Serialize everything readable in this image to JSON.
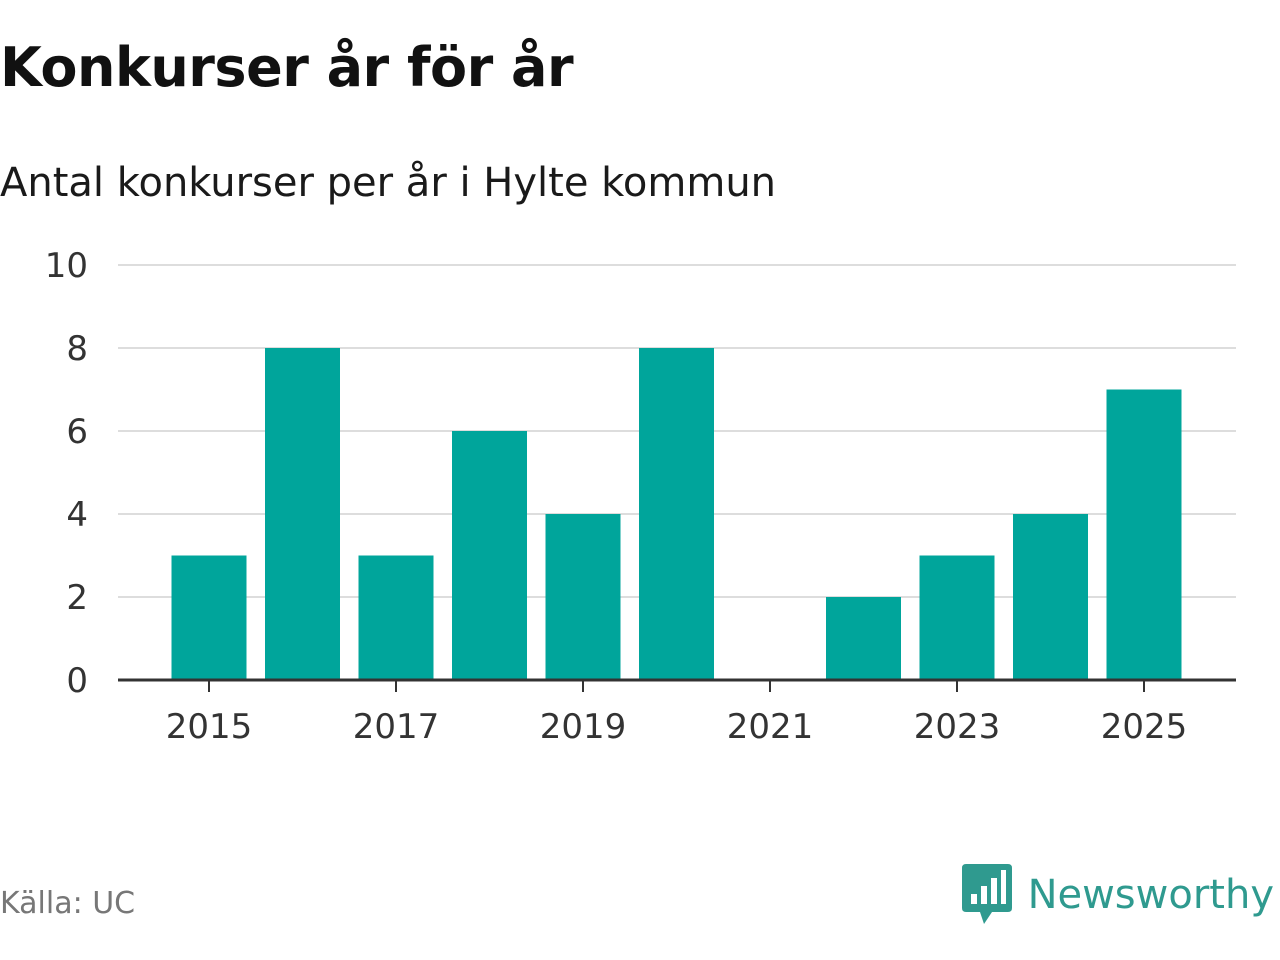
{
  "title": "Konkurser år för år",
  "subtitle": "Antal konkurser per år i Hylte kommun",
  "source": "Källa: UC",
  "brand": {
    "name": "Newsworthy",
    "icon": "newsworthy-logo-icon",
    "color": "#2f9a8f"
  },
  "colors": {
    "bar": "#00a59b",
    "grid": "#dddddd",
    "axis": "#333333"
  },
  "chart_data": {
    "type": "bar",
    "title": "Konkurser år för år",
    "subtitle": "Antal konkurser per år i Hylte kommun",
    "xlabel": "",
    "ylabel": "",
    "categories": [
      2015,
      2016,
      2017,
      2018,
      2019,
      2020,
      2021,
      2022,
      2023,
      2024,
      2025
    ],
    "values": [
      3,
      8,
      3,
      6,
      4,
      8,
      0,
      2,
      3,
      4,
      7
    ],
    "x_ticks": [
      2015,
      2017,
      2019,
      2021,
      2023,
      2025
    ],
    "y_ticks": [
      0,
      2,
      4,
      6,
      8,
      10
    ],
    "ylim": [
      0,
      10
    ],
    "grid": true,
    "legend": "none"
  }
}
